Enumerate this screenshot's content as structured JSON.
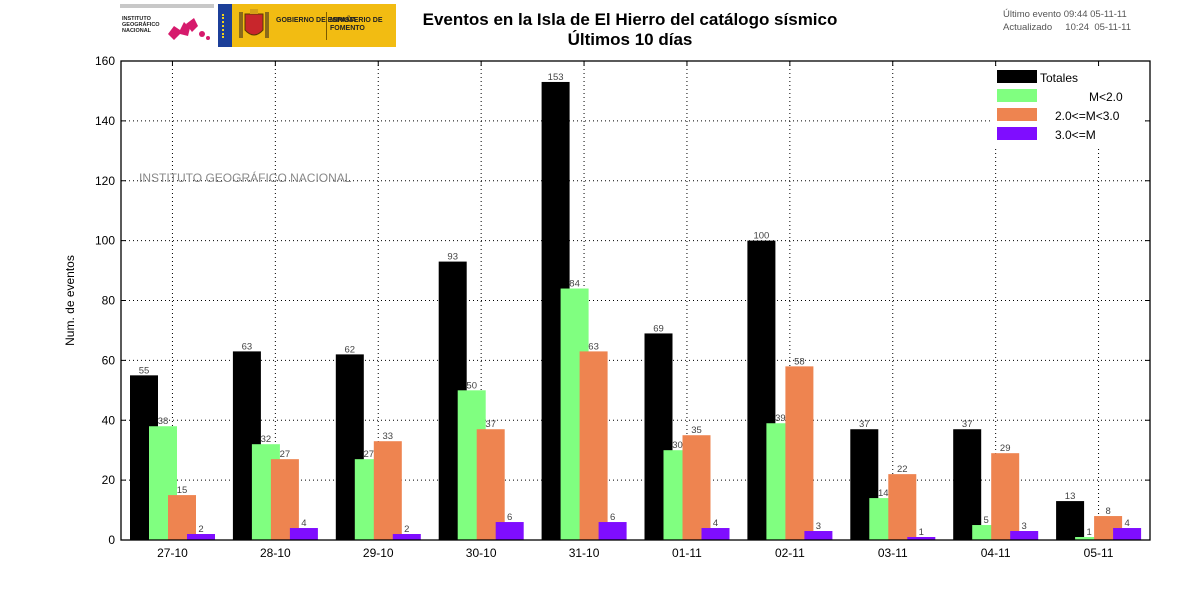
{
  "header": {
    "logo_ign_text": "INSTITUTO GEOGRÁFICO NACIONAL",
    "logo_gov_text": "GOBIERNO DE ESPAÑA",
    "logo_min_text": "MINISTERIO DE FOMENTO",
    "title_line1": "Eventos en la Isla de El Hierro del catálogo sísmico",
    "title_line2": "Últimos 10 días",
    "last_event": "Último evento 09:44 05-11-11",
    "updated": "Actualizado     10:24  05-11-11"
  },
  "colors": {
    "Totales": "#000000",
    "M<2.0": "#80ff80",
    "2.0<=M<3.0": "#ee8450",
    "3.0<=M": "#7f0dff"
  },
  "chart_data": {
    "type": "bar",
    "title": "Eventos en la Isla de El Hierro del catálogo sísmico",
    "subtitle": "Últimos 10 días",
    "xlabel": "",
    "ylabel": "Num. de eventos",
    "watermark": "INSTITUTO GEOGRÁFICO NACIONAL",
    "categories": [
      "27-10",
      "28-10",
      "29-10",
      "30-10",
      "31-10",
      "01-11",
      "02-11",
      "03-11",
      "04-11",
      "05-11"
    ],
    "ylim": [
      0,
      160
    ],
    "yticks": [
      0,
      20,
      40,
      60,
      80,
      100,
      120,
      140,
      160
    ],
    "grid": true,
    "legend_position": "top-right",
    "series": [
      {
        "name": "Totales",
        "values": [
          55,
          63,
          62,
          93,
          153,
          69,
          100,
          37,
          37,
          13
        ]
      },
      {
        "name": "M<2.0",
        "values": [
          38,
          32,
          27,
          50,
          84,
          30,
          39,
          14,
          5,
          1
        ]
      },
      {
        "name": "2.0<=M<3.0",
        "values": [
          15,
          27,
          33,
          37,
          63,
          35,
          58,
          22,
          29,
          8
        ]
      },
      {
        "name": "3.0<=M",
        "values": [
          2,
          4,
          2,
          6,
          6,
          4,
          3,
          1,
          3,
          4
        ]
      }
    ]
  }
}
